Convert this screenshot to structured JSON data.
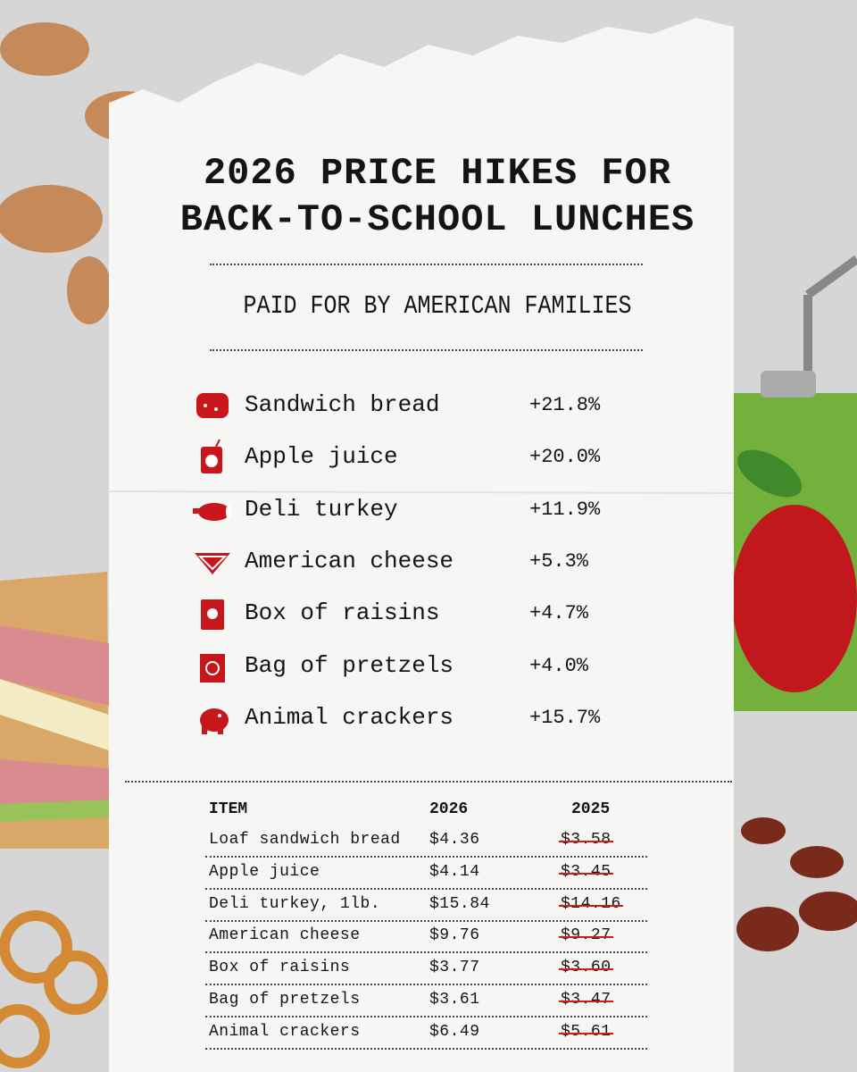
{
  "header": {
    "title_lines": [
      "2026 PRICE HIKES FOR",
      "BACK-TO-SCHOOL LUNCHES"
    ],
    "subtitle": "PAID FOR BY AMERICAN FAMILIES"
  },
  "hikes": [
    {
      "label": "Sandwich bread",
      "change": "+21.8%"
    },
    {
      "label": "Apple juice",
      "change": "+20.0%"
    },
    {
      "label": "Deli turkey",
      "change": "+11.9%"
    },
    {
      "label": "American cheese",
      "change": "+5.3%"
    },
    {
      "label": "Box of raisins",
      "change": "+4.7%"
    },
    {
      "label": "Bag of pretzels",
      "change": "+4.0%"
    },
    {
      "label": "Animal crackers",
      "change": "+15.7%"
    }
  ],
  "table": {
    "headers": [
      "ITEM",
      "2026",
      "2025"
    ],
    "rows": [
      [
        "Loaf sandwich bread",
        "$4.36",
        "$3.58"
      ],
      [
        "Apple juice",
        "$4.14",
        "$3.45"
      ],
      [
        "Deli turkey, 1lb.",
        "$15.84",
        "$14.16"
      ],
      [
        "American cheese",
        "$9.76",
        "$9.27"
      ],
      [
        "Box of raisins",
        "$3.77",
        "$3.60"
      ],
      [
        "Bag of pretzels",
        "$3.61",
        "$3.47"
      ],
      [
        "Animal crackers",
        "$6.49",
        "$5.61"
      ]
    ]
  }
}
